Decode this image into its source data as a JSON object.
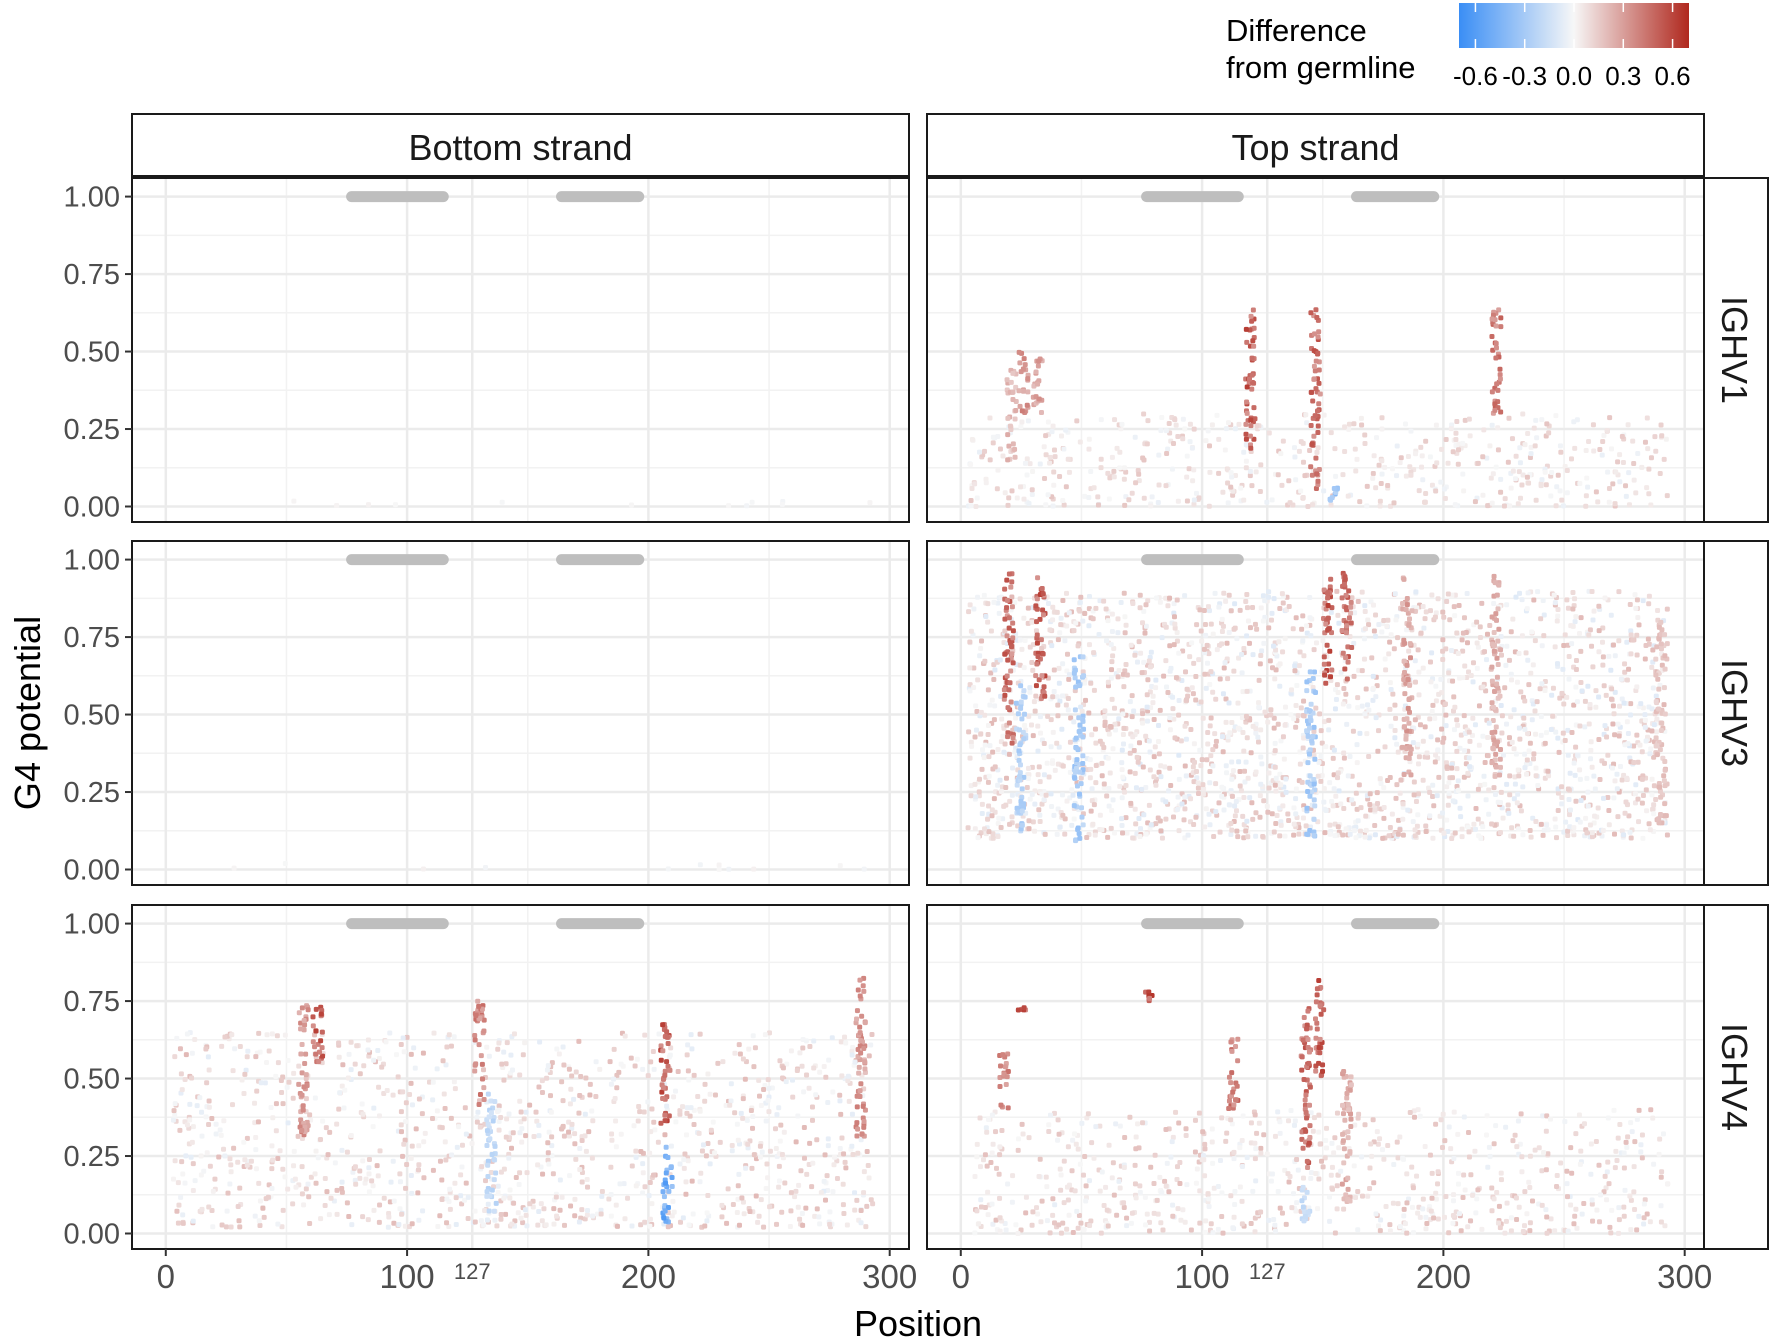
{
  "chart_data": {
    "type": "scatter",
    "xlabel": "Position",
    "ylabel": "G4 potential",
    "xlim": [
      -14,
      308
    ],
    "ylim": [
      -0.05,
      1.06
    ],
    "x_ticks": [
      0,
      100,
      200,
      300
    ],
    "x_minor_label": "127",
    "y_ticks": [
      "0.00",
      "0.25",
      "0.50",
      "0.75",
      "1.00"
    ],
    "columns": [
      "Bottom strand",
      "Top strand"
    ],
    "rows": [
      "IGHV1",
      "IGHV3",
      "IGHV4"
    ],
    "grid": true,
    "region_bars": [
      [
        77,
        115
      ],
      [
        164,
        196
      ]
    ],
    "legend": {
      "title": [
        "Difference",
        "from germline"
      ],
      "tick_labels": [
        "-0.6",
        "-0.3",
        "0.0",
        "0.3",
        "0.6"
      ],
      "range": [
        -0.7,
        0.7
      ],
      "position": "top-right",
      "colors": {
        "low": "#3a8ef5",
        "mid": "#f7f7f7",
        "high": "#b0281e"
      }
    },
    "panels": [
      {
        "row": "IGHV1",
        "strand": "Bottom strand",
        "density": "none",
        "hotspots": []
      },
      {
        "row": "IGHV1",
        "strand": "Top strand",
        "density": "sparse",
        "hotspots": [
          {
            "x": 21,
            "y_range": [
              0.15,
              0.45
            ],
            "diff": 0.25
          },
          {
            "x": 26,
            "y_range": [
              0.3,
              0.5
            ],
            "diff": 0.4
          },
          {
            "x": 32,
            "y_range": [
              0.3,
              0.48
            ],
            "diff": 0.35
          },
          {
            "x": 120,
            "y_range": [
              0.18,
              0.64
            ],
            "diff": 0.6
          },
          {
            "x": 147,
            "y_range": [
              0.05,
              0.64
            ],
            "diff": 0.55
          },
          {
            "x": 155,
            "y_range": [
              0.02,
              0.06
            ],
            "diff": -0.4
          },
          {
            "x": 222,
            "y_range": [
              0.3,
              0.64
            ],
            "diff": 0.5
          }
        ]
      },
      {
        "row": "IGHV3",
        "strand": "Bottom strand",
        "density": "none",
        "hotspots": []
      },
      {
        "row": "IGHV3",
        "strand": "Top strand",
        "density": "dense",
        "hotspots": [
          {
            "x": 20,
            "y_range": [
              0.4,
              0.96
            ],
            "diff": 0.55
          },
          {
            "x": 33,
            "y_range": [
              0.55,
              0.96
            ],
            "diff": 0.6
          },
          {
            "x": 25,
            "y_range": [
              0.12,
              0.6
            ],
            "diff": -0.3
          },
          {
            "x": 49,
            "y_range": [
              0.08,
              0.7
            ],
            "diff": -0.35
          },
          {
            "x": 145,
            "y_range": [
              0.1,
              0.65
            ],
            "diff": -0.35
          },
          {
            "x": 152,
            "y_range": [
              0.6,
              0.96
            ],
            "diff": 0.6
          },
          {
            "x": 160,
            "y_range": [
              0.6,
              0.96
            ],
            "diff": 0.55
          },
          {
            "x": 185,
            "y_range": [
              0.3,
              0.95
            ],
            "diff": 0.35
          },
          {
            "x": 222,
            "y_range": [
              0.3,
              0.95
            ],
            "diff": 0.3
          },
          {
            "x": 290,
            "y_range": [
              0.15,
              0.8
            ],
            "diff": 0.2
          }
        ]
      },
      {
        "row": "IGHV4",
        "strand": "Bottom strand",
        "density": "medium",
        "hotspots": [
          {
            "x": 57,
            "y_range": [
              0.3,
              0.75
            ],
            "diff": 0.4
          },
          {
            "x": 63,
            "y_range": [
              0.55,
              0.75
            ],
            "diff": 0.6
          },
          {
            "x": 130,
            "y_range": [
              0.4,
              0.75
            ],
            "diff": 0.45
          },
          {
            "x": 135,
            "y_range": [
              0.06,
              0.45
            ],
            "diff": -0.25
          },
          {
            "x": 207,
            "y_range": [
              0.35,
              0.68
            ],
            "diff": 0.6
          },
          {
            "x": 208,
            "y_range": [
              0.03,
              0.3
            ],
            "diff": -0.6
          },
          {
            "x": 288,
            "y_range": [
              0.3,
              0.84
            ],
            "diff": 0.4
          }
        ]
      },
      {
        "row": "IGHV4",
        "strand": "Top strand",
        "density": "medium-sparse",
        "hotspots": [
          {
            "x": 25,
            "y_range": [
              0.72,
              0.73
            ],
            "diff": 0.6
          },
          {
            "x": 18,
            "y_range": [
              0.4,
              0.58
            ],
            "diff": 0.45
          },
          {
            "x": 78,
            "y_range": [
              0.75,
              0.78
            ],
            "diff": 0.65
          },
          {
            "x": 113,
            "y_range": [
              0.4,
              0.63
            ],
            "diff": 0.5
          },
          {
            "x": 143,
            "y_range": [
              0.2,
              0.73
            ],
            "diff": 0.55
          },
          {
            "x": 149,
            "y_range": [
              0.5,
              0.82
            ],
            "diff": 0.6
          },
          {
            "x": 143,
            "y_range": [
              0.03,
              0.15
            ],
            "diff": -0.25
          },
          {
            "x": 160,
            "y_range": [
              0.1,
              0.55
            ],
            "diff": 0.3
          }
        ]
      }
    ]
  }
}
